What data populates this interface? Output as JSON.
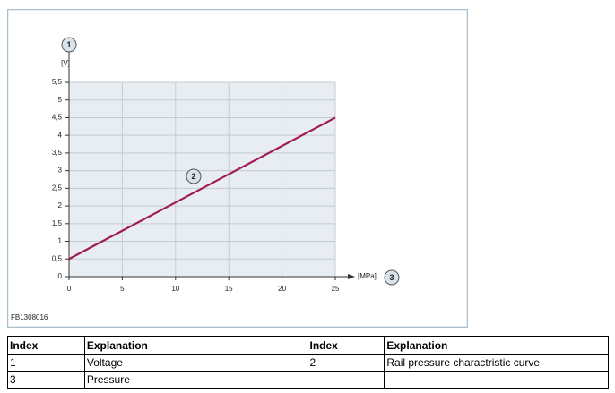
{
  "chart_data": {
    "type": "line",
    "x_label": "[MPa]",
    "y_label": "[V]",
    "x": [
      0,
      25
    ],
    "series": [
      {
        "color": "#a0195a",
        "values": [
          0.5,
          4.5
        ]
      }
    ],
    "xlim": [
      0,
      25
    ],
    "xticks": [
      0,
      5,
      10,
      15,
      20,
      25
    ],
    "ylim": [
      0,
      5.5
    ],
    "yticks": [
      0,
      {
        "value": 0.5,
        "label": "0,5"
      },
      1,
      {
        "value": 1.5,
        "label": "1,5"
      },
      2,
      {
        "value": 2.5,
        "label": "2,5"
      },
      3,
      {
        "value": 3.5,
        "label": "3,5"
      },
      4,
      {
        "value": 4.5,
        "label": "4,5"
      },
      5,
      {
        "value": 5.5,
        "label": "5,5"
      }
    ],
    "grid": true,
    "callouts": [
      "1",
      "2",
      "3"
    ]
  },
  "figure_id": "FB1308016",
  "table": {
    "header": [
      "Index",
      "Explanation",
      "Index",
      "Explanation"
    ],
    "rows": [
      [
        "1",
        "Voltage",
        "2",
        "Rail pressure charactristic curve"
      ],
      [
        "3",
        "Pressure",
        null,
        null
      ]
    ]
  }
}
